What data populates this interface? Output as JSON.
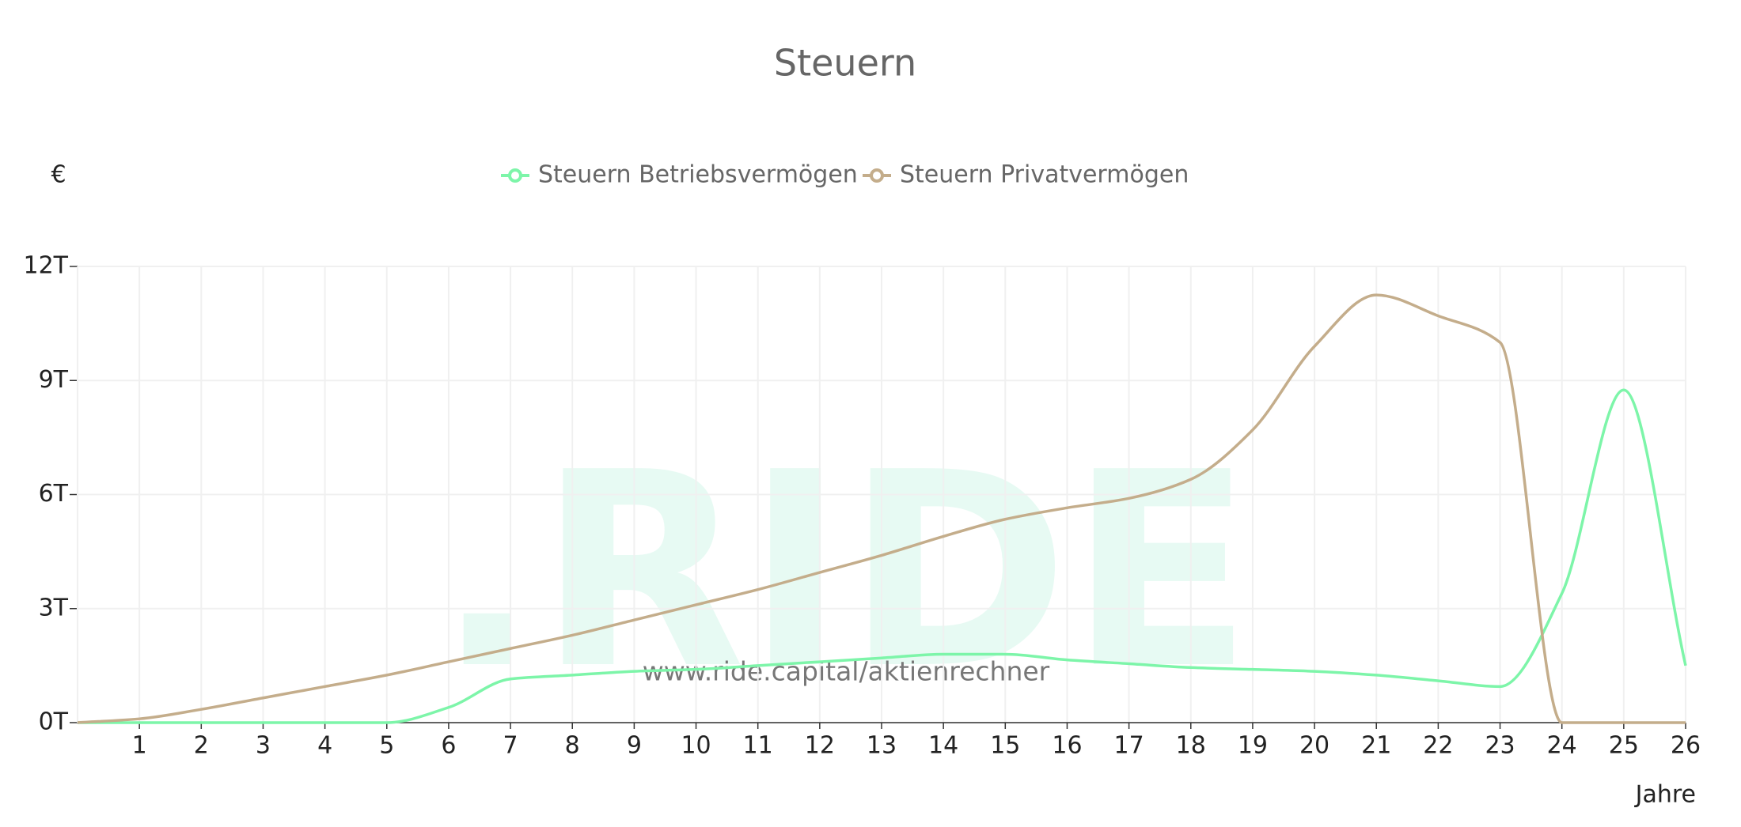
{
  "chart_data": {
    "type": "line",
    "title": "Steuern",
    "y_label": "€",
    "x_label": "Jahre",
    "watermark": ".RIDE",
    "watermark_url": "www.ride.capital/aktienrechner",
    "x": [
      0,
      1,
      2,
      3,
      4,
      5,
      6,
      7,
      8,
      9,
      10,
      11,
      12,
      13,
      14,
      15,
      16,
      17,
      18,
      19,
      20,
      21,
      22,
      23,
      24,
      25,
      26
    ],
    "series": [
      {
        "name": "Steuern Betriebsvermögen",
        "color": "#7df5a9",
        "values": [
          0,
          0,
          0,
          0,
          0,
          0,
          0.4,
          1.15,
          1.25,
          1.35,
          1.4,
          1.5,
          1.6,
          1.7,
          1.8,
          1.8,
          1.65,
          1.55,
          1.45,
          1.4,
          1.35,
          1.25,
          1.1,
          0.95,
          3.4,
          8.75,
          1.5
        ]
      },
      {
        "name": "Steuern Privatvermögen",
        "color": "#c4ad8b",
        "values": [
          0,
          0.1,
          0.35,
          0.65,
          0.95,
          1.25,
          1.6,
          1.95,
          2.3,
          2.7,
          3.1,
          3.5,
          3.95,
          4.4,
          4.9,
          5.35,
          5.65,
          5.9,
          6.4,
          7.7,
          9.9,
          11.25,
          10.7,
          10.0,
          0,
          0,
          0
        ]
      }
    ],
    "xlim": [
      0,
      26
    ],
    "xticks": [
      1,
      2,
      3,
      4,
      5,
      6,
      7,
      8,
      9,
      10,
      11,
      12,
      13,
      14,
      15,
      16,
      17,
      18,
      19,
      20,
      21,
      22,
      23,
      24,
      25,
      26
    ],
    "ylim": [
      0,
      12
    ],
    "yticks": [
      {
        "value": 0,
        "label": "0T"
      },
      {
        "value": 3,
        "label": "3T"
      },
      {
        "value": 6,
        "label": "6T"
      },
      {
        "value": 9,
        "label": "9T"
      },
      {
        "value": 12,
        "label": "12T"
      }
    ],
    "grid": true
  }
}
